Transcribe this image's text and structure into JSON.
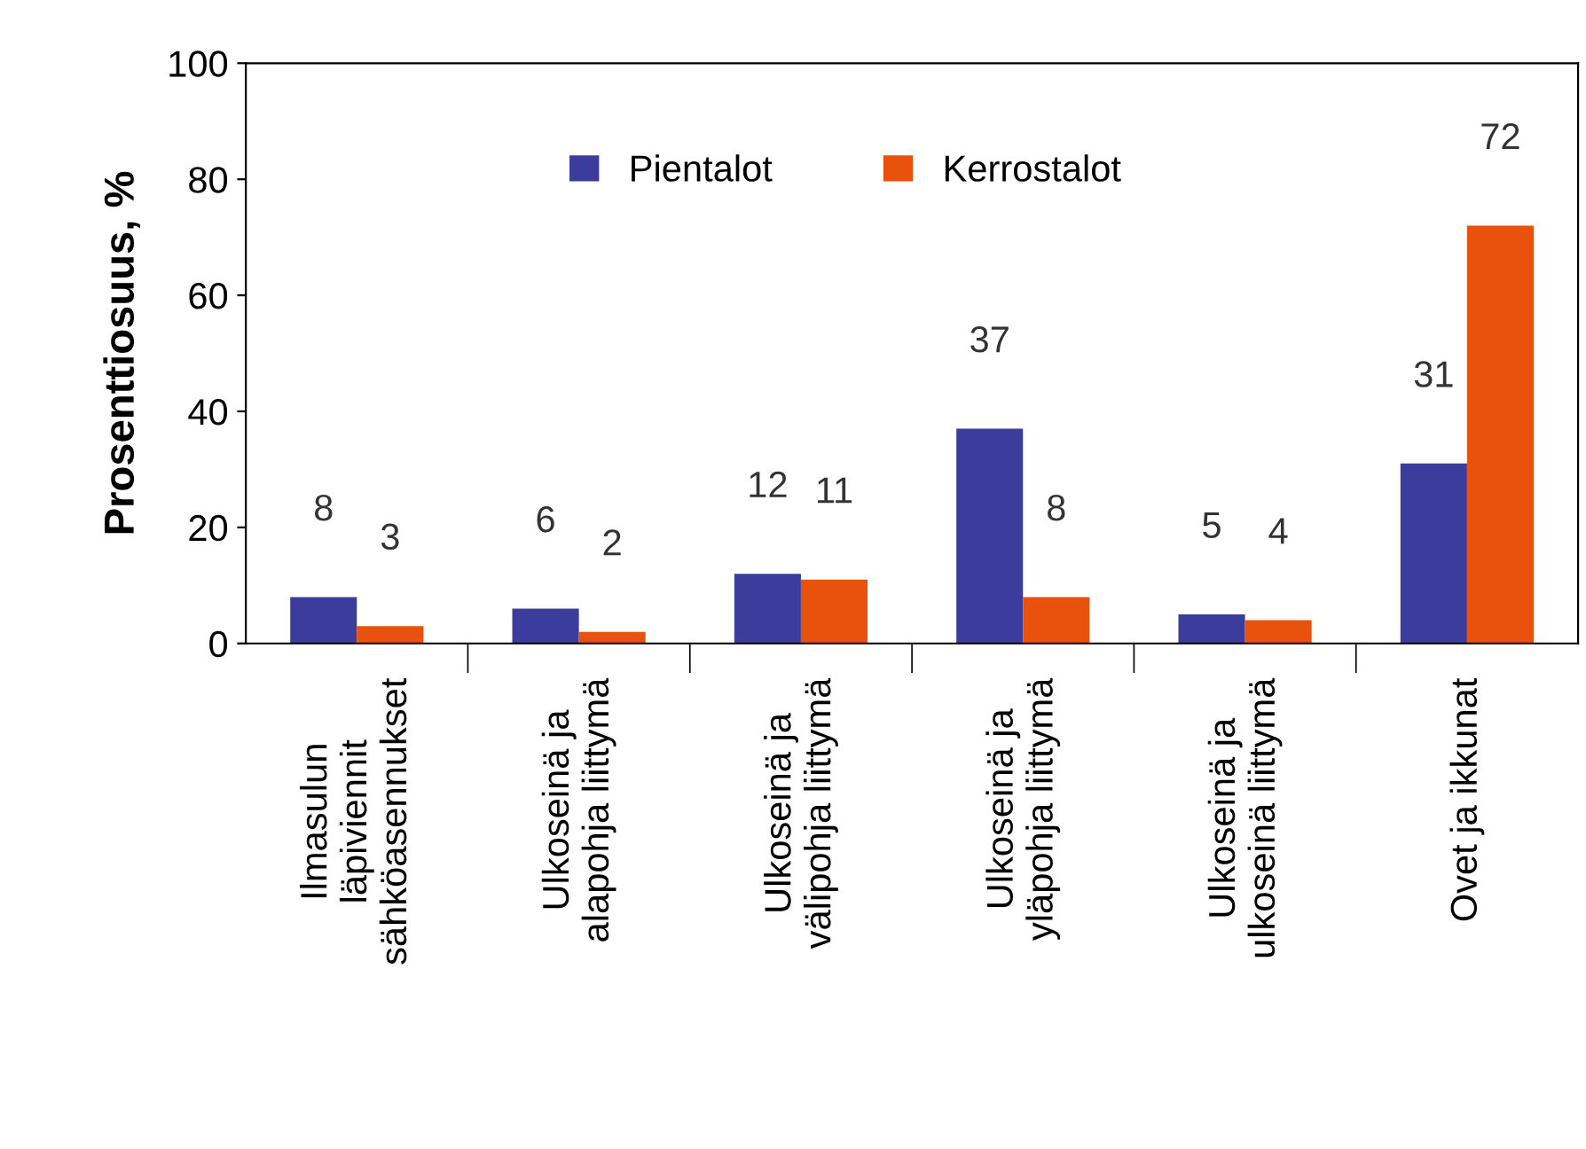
{
  "chart_data": {
    "type": "bar",
    "ylabel": "Prosenttiosuus, %",
    "categories": [
      "Ilmasulun\nläpiviennit\nsähköasennukset",
      "Ulkoseinä ja\nalapohja liittymä",
      "Ulkoseinä ja\nvälipohja liittymä",
      "Ulkoseinä ja\nyläpohja liittymä",
      "Ulkoseinä ja\nulkoseinä liittymä",
      "Ovet ja ikkunat"
    ],
    "series": [
      {
        "name": "Pientalot",
        "color": "#3c3c9c",
        "values": [
          8,
          6,
          12,
          37,
          5,
          31
        ]
      },
      {
        "name": "Kerrostalot",
        "color": "#e8520c",
        "values": [
          3,
          2,
          11,
          8,
          4,
          72
        ]
      }
    ],
    "ylim": [
      0,
      100
    ],
    "yticks": [
      0,
      20,
      40,
      60,
      80,
      100
    ],
    "data_labels": true,
    "legend": "top",
    "grid": false
  }
}
